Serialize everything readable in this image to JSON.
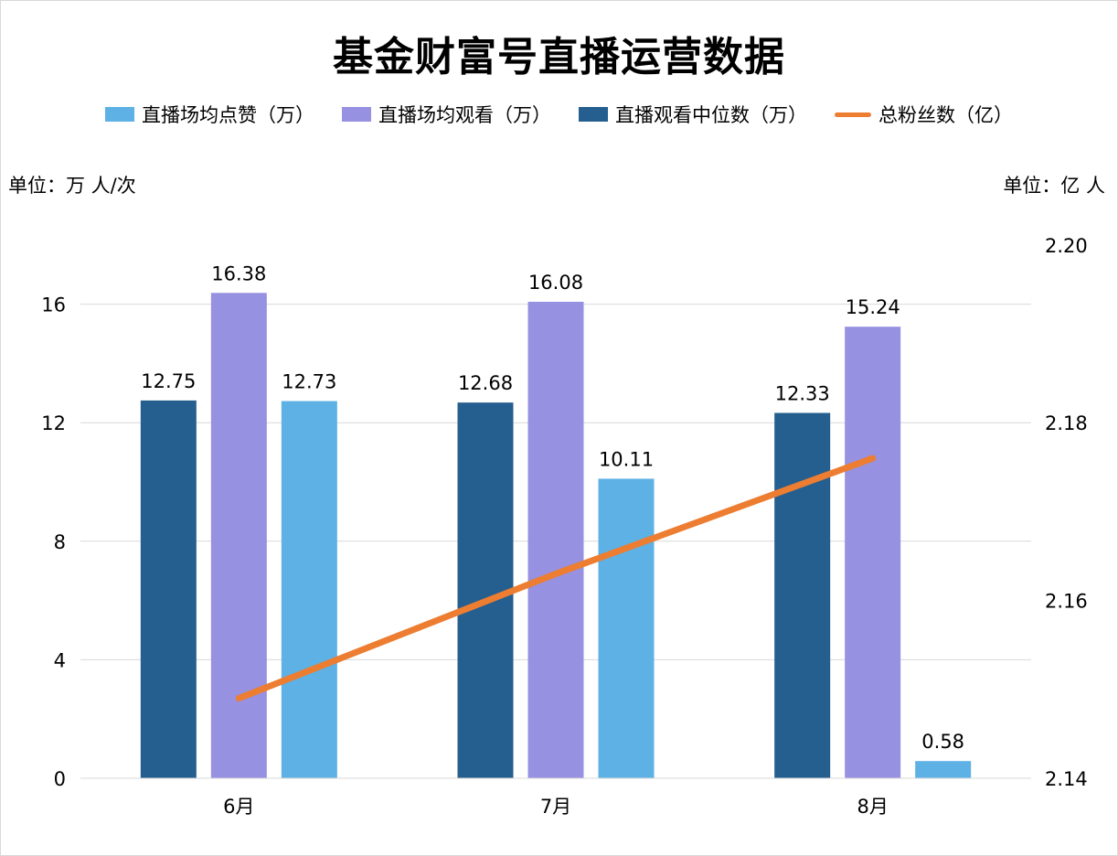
{
  "title": "基金财富号直播运营数据",
  "legend": [
    {
      "label": "直播场均点赞（万）",
      "color": "#5DB1E5",
      "type": "bar"
    },
    {
      "label": "直播场均观看（万）",
      "color": "#9691E1",
      "type": "bar"
    },
    {
      "label": "直播观看中位数（万）",
      "color": "#255F8F",
      "type": "bar"
    },
    {
      "label": "总粉丝数（亿）",
      "color": "#ED7D31",
      "type": "line"
    }
  ],
  "units": {
    "left": "单位：万 人/次",
    "right": "单位：亿 人"
  },
  "axes": {
    "left_ticks": [
      "0",
      "4",
      "8",
      "12",
      "16"
    ],
    "right_ticks": [
      "2.14",
      "2.16",
      "2.18",
      "2.20"
    ],
    "categories": [
      "6月",
      "7月",
      "8月"
    ]
  },
  "chart_data": {
    "type": "bar",
    "title": "基金财富号直播运营数据",
    "categories": [
      "6月",
      "7月",
      "8月"
    ],
    "series": [
      {
        "name": "直播观看中位数（万）",
        "type": "bar",
        "axis": "left",
        "color": "#255F8F",
        "values": [
          12.75,
          12.68,
          12.33
        ]
      },
      {
        "name": "直播场均观看（万）",
        "type": "bar",
        "axis": "left",
        "color": "#9691E1",
        "values": [
          16.38,
          16.08,
          15.24
        ]
      },
      {
        "name": "直播场均点赞（万）",
        "type": "bar",
        "axis": "left",
        "color": "#5DB1E5",
        "values": [
          12.73,
          10.11,
          0.58
        ]
      },
      {
        "name": "总粉丝数（亿）",
        "type": "line",
        "axis": "right",
        "color": "#ED7D31",
        "values": [
          2.149,
          2.163,
          2.176
        ]
      }
    ],
    "data_labels": {
      "直播观看中位数（万）": [
        "12.75",
        "12.68",
        "12.33"
      ],
      "直播场均观看（万）": [
        "16.38",
        "16.08",
        "15.24"
      ],
      "直播场均点赞（万）": [
        "12.73",
        "10.11",
        "0.58"
      ]
    },
    "xlabel": "",
    "ylabel": "单位：万 人/次",
    "y2label": "单位：亿 人",
    "ylim": [
      0,
      18
    ],
    "y2lim": [
      2.14,
      2.2
    ],
    "yticks": [
      0,
      4,
      8,
      12,
      16
    ],
    "y2ticks": [
      2.14,
      2.16,
      2.18,
      2.2
    ],
    "grid": true,
    "legend_position": "top"
  }
}
